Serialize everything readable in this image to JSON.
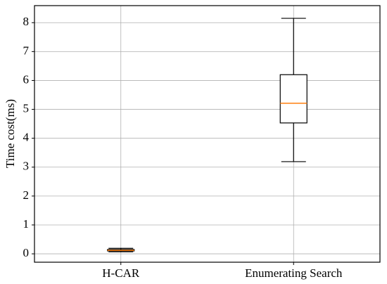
{
  "chart_data": {
    "type": "box",
    "y_label": "Time cost(ms)",
    "categories": [
      "H-CAR",
      "Enumerating Search"
    ],
    "boxes": [
      {
        "low": 0.07,
        "q1": 0.1,
        "median": 0.12,
        "q3": 0.15,
        "high": 0.19
      },
      {
        "low": 3.19,
        "q1": 4.53,
        "median": 5.21,
        "q3": 6.2,
        "high": 8.15
      }
    ],
    "box_color": "#000000",
    "median_color": "#ff7f0e",
    "ylim": [
      -0.29,
      8.59
    ],
    "yticks": [
      0,
      1,
      2,
      3,
      4,
      5,
      6,
      7,
      8
    ],
    "grid": true
  }
}
